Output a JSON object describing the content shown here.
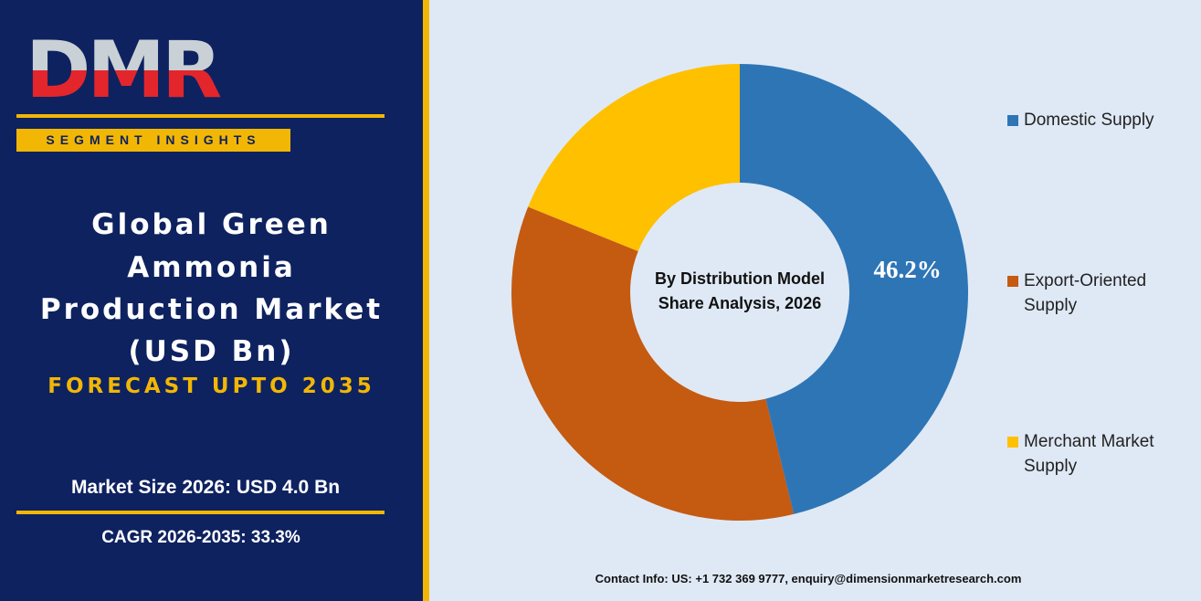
{
  "logo": "DMR",
  "badge": "SEGMENT INSIGHTS",
  "title_lines": [
    "Global Green",
    "Ammonia",
    "Production Market",
    "(USD Bn)"
  ],
  "forecast": "FORECAST UPTO 2035",
  "market_size": "Market Size 2026: USD 4.0 Bn",
  "cagr": "CAGR 2026-2035: 33.3%",
  "contact": "Contact Info: US: +1 732 369 9777, enquiry@dimensionmarketresearch.com",
  "chart_data": {
    "type": "pie",
    "donut": true,
    "title": "By Distribution Model",
    "subtitle": "Share Analysis, 2026",
    "categories": [
      "Domestic Supply",
      "Export-Oriented Supply",
      "Merchant Market Supply"
    ],
    "values": [
      46.2,
      34.9,
      18.9
    ],
    "value_labels": [
      "46.2%",
      null,
      null
    ],
    "colors": [
      "#2e75b6",
      "#c55a11",
      "#ffc000"
    ]
  }
}
